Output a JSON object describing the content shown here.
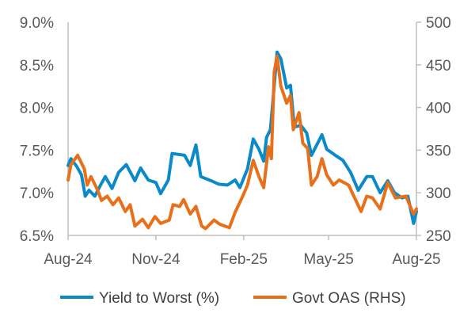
{
  "chart_data": {
    "type": "line",
    "title": "",
    "xlabel": "",
    "ylabel": "",
    "y2label": "",
    "x_ticks": [
      "Aug-24",
      "Nov-24",
      "Feb-25",
      "May-25",
      "Aug-25"
    ],
    "x_tick_dates": [
      "2024-08-01",
      "2024-11-01",
      "2025-02-01",
      "2025-05-01",
      "2025-08-01"
    ],
    "xlim": [
      "2024-08-01",
      "2025-08-01"
    ],
    "ylim": [
      6.5,
      9.0
    ],
    "y_ticks": [
      "6.5%",
      "7.0%",
      "7.5%",
      "8.0%",
      "8.5%",
      "9.0%"
    ],
    "y_tick_values": [
      6.5,
      7.0,
      7.5,
      8.0,
      8.5,
      9.0
    ],
    "y2lim": [
      250,
      500
    ],
    "y2_ticks": [
      "250",
      "300",
      "350",
      "400",
      "450",
      "500"
    ],
    "y2_tick_values": [
      250,
      300,
      350,
      400,
      450,
      500
    ],
    "grid": false,
    "legend_position": "bottom",
    "series": [
      {
        "name": "Yield to Worst (%)",
        "axis": "left",
        "color": "#0A8AC8",
        "dates": [
          "2024-08-01",
          "2024-08-04",
          "2024-08-10",
          "2024-08-15",
          "2024-08-19",
          "2024-08-23",
          "2024-08-29",
          "2024-09-04",
          "2024-09-09",
          "2024-09-16",
          "2024-09-23",
          "2024-10-01",
          "2024-10-10",
          "2024-10-16",
          "2024-10-24",
          "2024-11-01",
          "2024-11-06",
          "2024-11-14",
          "2024-11-18",
          "2024-12-01",
          "2024-12-07",
          "2024-12-13",
          "2024-12-18",
          "2024-12-29",
          "2025-01-06",
          "2025-01-15",
          "2025-01-23",
          "2025-01-28",
          "2025-02-05",
          "2025-02-11",
          "2025-02-17",
          "2025-02-22",
          "2025-02-25",
          "2025-03-01",
          "2025-03-08",
          "2025-03-12",
          "2025-03-18",
          "2025-03-22",
          "2025-03-26",
          "2025-04-02",
          "2025-04-08",
          "2025-04-13",
          "2025-04-24",
          "2025-04-29",
          "2025-05-08",
          "2025-05-16",
          "2025-05-24",
          "2025-06-01",
          "2025-06-10",
          "2025-06-16",
          "2025-06-24",
          "2025-07-02",
          "2025-07-09",
          "2025-07-17",
          "2025-07-23",
          "2025-07-29",
          "2025-08-01"
        ],
        "values": [
          7.32,
          7.4,
          7.31,
          7.21,
          6.96,
          7.03,
          6.96,
          7.09,
          7.19,
          7.05,
          7.24,
          7.33,
          7.14,
          7.29,
          7.15,
          7.12,
          6.99,
          7.15,
          7.46,
          7.44,
          7.32,
          7.56,
          7.19,
          7.14,
          7.1,
          7.09,
          7.15,
          7.06,
          7.28,
          7.63,
          7.51,
          7.37,
          7.65,
          7.74,
          8.65,
          8.57,
          8.23,
          8.26,
          7.77,
          7.79,
          7.7,
          7.44,
          7.68,
          7.51,
          7.44,
          7.38,
          7.24,
          7.03,
          7.19,
          7.19,
          7.0,
          7.14,
          7.0,
          6.94,
          6.96,
          6.64,
          6.78
        ]
      },
      {
        "name": "Govt OAS (RHS)",
        "axis": "right",
        "color": "#E8701A",
        "dates": [
          "2024-08-01",
          "2024-08-04",
          "2024-08-11",
          "2024-08-18",
          "2024-08-21",
          "2024-08-25",
          "2024-09-01",
          "2024-09-05",
          "2024-09-11",
          "2024-09-17",
          "2024-09-23",
          "2024-09-30",
          "2024-10-05",
          "2024-10-10",
          "2024-10-18",
          "2024-10-24",
          "2024-10-31",
          "2024-11-06",
          "2024-11-15",
          "2024-11-19",
          "2024-11-26",
          "2024-11-30",
          "2024-12-07",
          "2024-12-13",
          "2024-12-19",
          "2024-12-23",
          "2025-01-01",
          "2025-01-07",
          "2025-01-17",
          "2025-01-23",
          "2025-01-31",
          "2025-02-05",
          "2025-02-11",
          "2025-02-17",
          "2025-02-22",
          "2025-02-27",
          "2025-03-02",
          "2025-03-05",
          "2025-03-08",
          "2025-03-12",
          "2025-03-18",
          "2025-03-22",
          "2025-03-25",
          "2025-03-31",
          "2025-04-04",
          "2025-04-09",
          "2025-04-13",
          "2025-04-19",
          "2025-04-24",
          "2025-04-29",
          "2025-05-06",
          "2025-05-12",
          "2025-05-22",
          "2025-06-04",
          "2025-06-10",
          "2025-06-16",
          "2025-06-24",
          "2025-07-02",
          "2025-07-10",
          "2025-07-21",
          "2025-07-29",
          "2025-08-01"
        ],
        "values": [
          315,
          333,
          344,
          328,
          309,
          319,
          303,
          291,
          296,
          286,
          294,
          278,
          286,
          261,
          269,
          259,
          272,
          264,
          268,
          286,
          284,
          292,
          275,
          284,
          261,
          258,
          268,
          263,
          259,
          277,
          296,
          309,
          338,
          319,
          306,
          354,
          340,
          442,
          460,
          425,
          405,
          414,
          374,
          394,
          358,
          352,
          309,
          319,
          340,
          321,
          309,
          315,
          309,
          278,
          296,
          294,
          281,
          312,
          294,
          296,
          275,
          281
        ]
      }
    ]
  }
}
